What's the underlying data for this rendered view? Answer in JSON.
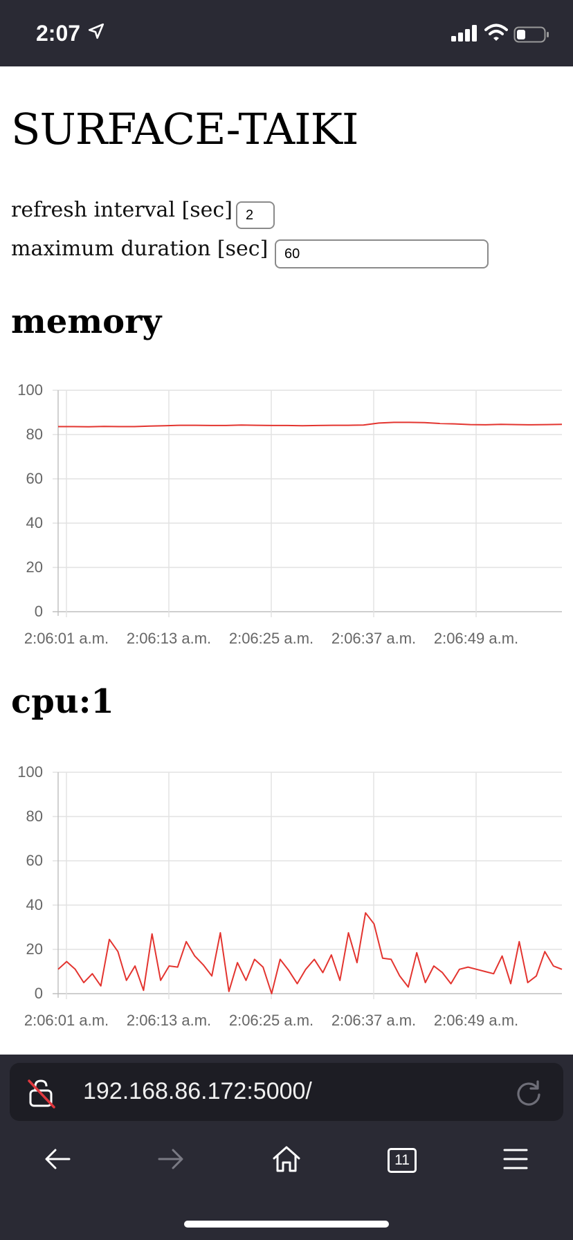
{
  "status_bar": {
    "time": "2:07"
  },
  "page": {
    "title": "SURFACE-TAIKI",
    "refresh_label": "refresh interval [sec]",
    "refresh_value": "2",
    "duration_label": "maximum duration [sec]",
    "duration_value": "60"
  },
  "chart_data": [
    {
      "type": "line",
      "title": "memory",
      "ylim": [
        0,
        100
      ],
      "yticks": [
        0,
        20,
        40,
        60,
        80,
        100
      ],
      "x_ticks": [
        "2:06:01 a.m.",
        "2:06:13 a.m.",
        "2:06:25 a.m.",
        "2:06:37 a.m.",
        "2:06:49 a.m."
      ],
      "grid": true,
      "series": [
        {
          "color": "#e3342f",
          "values": [
            83.6,
            83.6,
            83.5,
            83.7,
            83.6,
            83.6,
            83.8,
            84.0,
            84.2,
            84.2,
            84.1,
            84.1,
            84.3,
            84.2,
            84.1,
            84.1,
            84.0,
            84.1,
            84.2,
            84.2,
            84.3,
            85.2,
            85.5,
            85.5,
            85.4,
            85.0,
            84.8,
            84.5,
            84.4,
            84.6,
            84.5,
            84.4,
            84.5,
            84.6
          ]
        }
      ]
    },
    {
      "type": "line",
      "title": "cpu:1",
      "ylim": [
        0,
        100
      ],
      "yticks": [
        0,
        20,
        40,
        60,
        80,
        100
      ],
      "x_ticks": [
        "2:06:01 a.m.",
        "2:06:13 a.m.",
        "2:06:25 a.m.",
        "2:06:37 a.m.",
        "2:06:49 a.m."
      ],
      "grid": true,
      "series": [
        {
          "color": "#e3342f",
          "values": [
            11,
            14.5,
            11,
            5,
            9,
            3.5,
            24.5,
            19,
            6,
            12.5,
            1.5,
            27,
            6,
            12.5,
            12,
            23.5,
            17,
            13,
            8,
            27.5,
            1,
            14,
            6,
            15.5,
            12,
            0,
            15.5,
            10.5,
            4.5,
            11,
            15.5,
            9.5,
            17.5,
            6,
            27.5,
            14,
            36.5,
            31.5,
            16,
            15.5,
            8,
            3,
            18.5,
            5,
            12.5,
            9.5,
            4.5,
            11,
            12,
            11,
            10,
            9,
            17,
            4.5,
            23.5,
            5,
            8,
            19,
            12.5,
            11
          ]
        }
      ]
    }
  ],
  "browser": {
    "url": "192.168.86.172:5000/",
    "tab_count": "11"
  },
  "icons": {
    "status": [
      "location-arrow-icon",
      "signal-icon",
      "wifi-icon",
      "battery-icon"
    ],
    "browser": [
      "insecure-lock-icon",
      "reload-icon",
      "back-arrow-icon",
      "forward-arrow-icon",
      "home-icon",
      "tabs-icon",
      "menu-icon"
    ]
  }
}
